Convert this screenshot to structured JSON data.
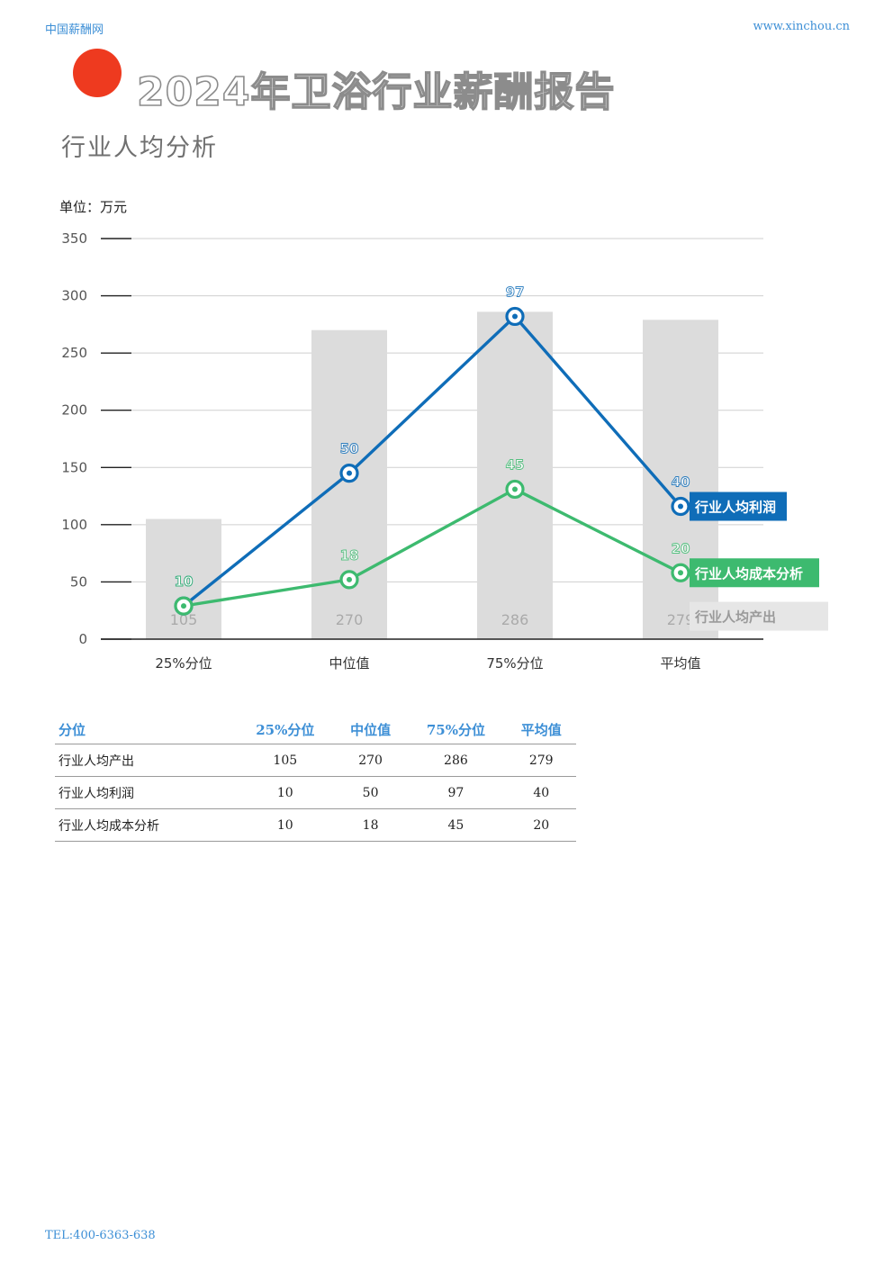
{
  "header": {
    "site_name": "中国薪酬网",
    "site_url": "www.xinchou.cn"
  },
  "title": "2024年卫浴行业薪酬报告",
  "subtitle": "行业人均分析",
  "unit_label": "单位：万元",
  "colors": {
    "accent_red": "#ee3a1f",
    "header_blue": "#3d8fd6",
    "profit_line": "#0f6db8",
    "cost_line": "#3dba6f",
    "bar_fill": "#dcdcdc"
  },
  "chart_data": {
    "type": "bar",
    "categories": [
      "25%分位",
      "中位值",
      "75%分位",
      "平均值"
    ],
    "ylim": [
      0,
      350
    ],
    "yticks": [
      0,
      50,
      100,
      150,
      200,
      250,
      300,
      350
    ],
    "grid": true,
    "series": [
      {
        "name": "行业人均产出",
        "kind": "bar",
        "color": "#dcdcdc",
        "values": [
          105,
          270,
          286,
          279
        ],
        "labels": [
          "105",
          "270",
          "286",
          "279"
        ]
      },
      {
        "name": "行业人均利润",
        "kind": "line",
        "color": "#0f6db8",
        "plot_values": [
          29,
          145,
          282,
          116
        ],
        "labels": [
          "10",
          "50",
          "97",
          "40"
        ]
      },
      {
        "name": "行业人均成本分析",
        "kind": "line",
        "color": "#3dba6f",
        "plot_values": [
          29,
          52,
          131,
          58
        ],
        "labels": [
          "10",
          "18",
          "45",
          "20"
        ]
      }
    ]
  },
  "table": {
    "headers": [
      "分位",
      "25%分位",
      "中位值",
      "75%分位",
      "平均值"
    ],
    "rows": [
      [
        "行业人均产出",
        "105",
        "270",
        "286",
        "279"
      ],
      [
        "行业人均利润",
        "10",
        "50",
        "97",
        "40"
      ],
      [
        "行业人均成本分析",
        "10",
        "18",
        "45",
        "20"
      ]
    ]
  },
  "footer": {
    "tel": "TEL:400-6363-638"
  }
}
